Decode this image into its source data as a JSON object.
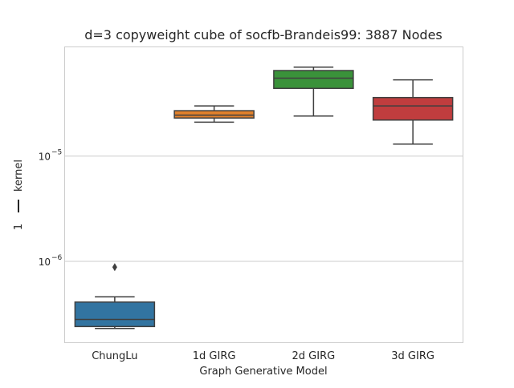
{
  "chart_data": {
    "type": "box",
    "title": "d=3 copyweight cube of socfb-Brandeis99: 3887 Nodes",
    "xlabel": "Graph Generative Model",
    "ylabel_parts": [
      "1",
      "kernel"
    ],
    "yscale": "log",
    "ylim": [
      1.7e-07,
      0.00011
    ],
    "yticks": [
      {
        "value": 1e-06,
        "base": "10",
        "exp": "−6"
      },
      {
        "value": 1e-05,
        "base": "10",
        "exp": "−5"
      }
    ],
    "grid": "horizontal",
    "categories": [
      "ChungLu",
      "1d GIRG",
      "2d GIRG",
      "3d GIRG"
    ],
    "boxes": [
      {
        "name": "ChungLu",
        "color": "#3274a1",
        "whislo": 2.3e-07,
        "q1": 2.4e-07,
        "med": 2.8e-07,
        "q3": 4.1e-07,
        "whishi": 4.6e-07,
        "fliers": [
          8.8e-07
        ]
      },
      {
        "name": "1d GIRG",
        "color": "#e1812c",
        "whislo": 2.1e-05,
        "q1": 2.3e-05,
        "med": 2.45e-05,
        "q3": 2.7e-05,
        "whishi": 3e-05,
        "fliers": []
      },
      {
        "name": "2d GIRG",
        "color": "#3a923a",
        "whislo": 2.4e-05,
        "q1": 4.4e-05,
        "med": 5.5e-05,
        "q3": 6.5e-05,
        "whishi": 7e-05,
        "fliers": []
      },
      {
        "name": "3d GIRG",
        "color": "#c03d3e",
        "whislo": 1.3e-05,
        "q1": 2.2e-05,
        "med": 3e-05,
        "q3": 3.6e-05,
        "whishi": 5.3e-05,
        "fliers": []
      }
    ]
  }
}
